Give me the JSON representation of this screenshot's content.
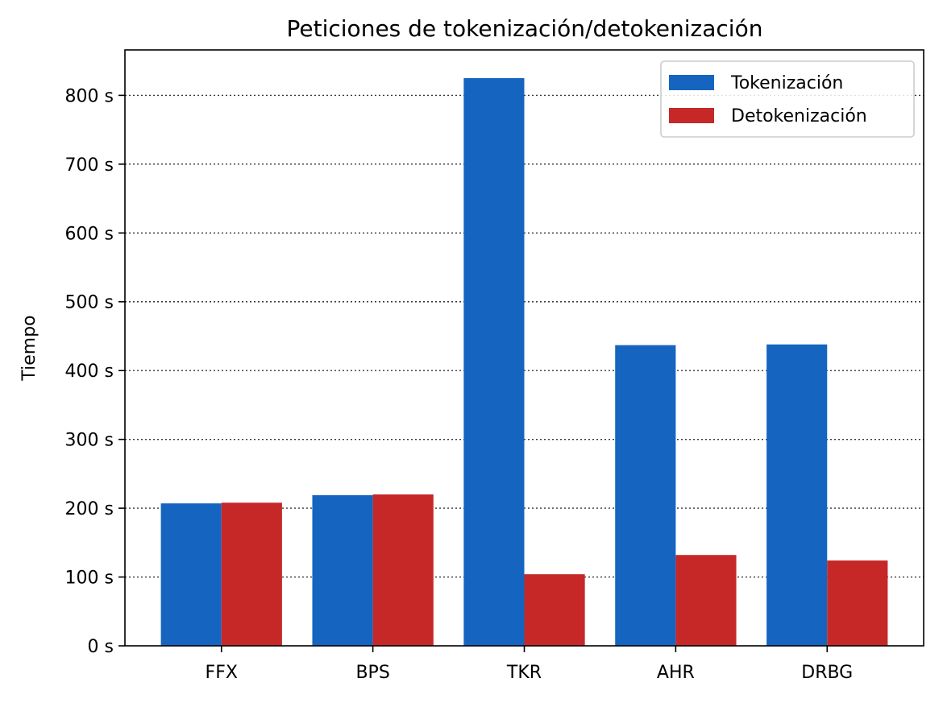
{
  "chart_data": {
    "type": "bar",
    "title": "Peticiones de tokenización/detokenización",
    "xlabel": "",
    "ylabel": "Tiempo",
    "categories": [
      "FFX",
      "BPS",
      "TKR",
      "AHR",
      "DRBG"
    ],
    "series": [
      {
        "name": "Tokenización",
        "color": "#1565c0",
        "values": [
          207,
          219,
          825,
          437,
          438
        ]
      },
      {
        "name": "Detokenización",
        "color": "#c62828",
        "values": [
          208,
          220,
          104,
          132,
          124
        ]
      }
    ],
    "ylim": [
      0,
      866
    ],
    "yticks": [
      0,
      100,
      200,
      300,
      400,
      500,
      600,
      700,
      800
    ],
    "ytick_labels": [
      "0 s",
      "100 s",
      "200 s",
      "300 s",
      "400 s",
      "500 s",
      "600 s",
      "700 s",
      "800 s"
    ],
    "grid": {
      "y": true,
      "x": false,
      "style": "dotted"
    },
    "legend_position": "top-right"
  }
}
